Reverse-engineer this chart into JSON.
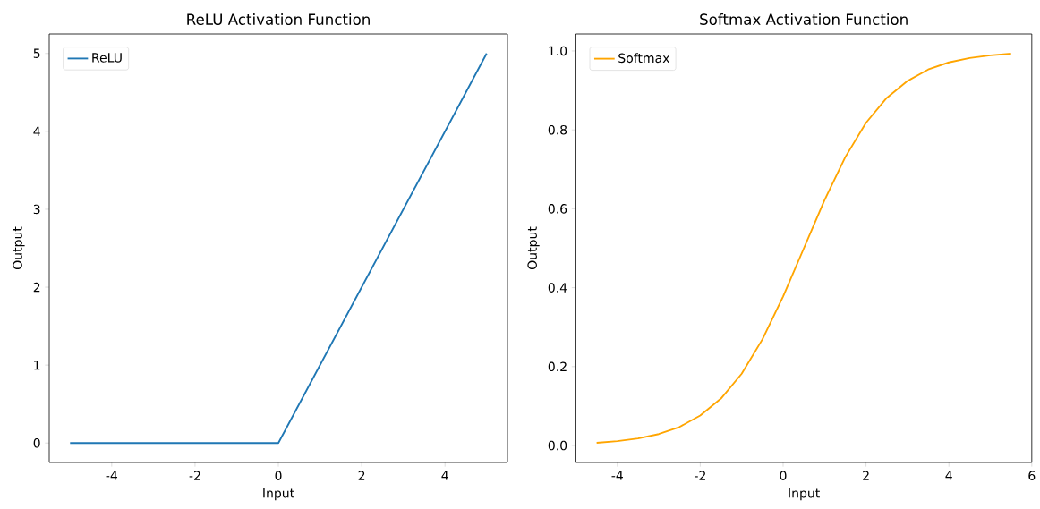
{
  "chart_data": [
    {
      "type": "line",
      "title": "ReLU Activation Function",
      "xlabel": "Input",
      "ylabel": "Output",
      "x": [
        -5,
        0,
        5
      ],
      "series": [
        {
          "name": "ReLU",
          "color": "#1f77b4",
          "values": [
            0,
            0,
            5
          ]
        }
      ],
      "xlim": [
        -5.5,
        5.5
      ],
      "ylim": [
        -0.25,
        5.25
      ],
      "xticks": [
        -4,
        -2,
        0,
        2,
        4
      ],
      "yticks": [
        0,
        1,
        2,
        3,
        4,
        5
      ],
      "legend": "top left",
      "grid": false
    },
    {
      "type": "line",
      "title": "Softmax Activation Function",
      "xlabel": "Input",
      "ylabel": "Output",
      "x": [
        -4.5,
        -4,
        -3.5,
        -3,
        -2.5,
        -2,
        -1.5,
        -1,
        -0.5,
        0,
        0.5,
        1,
        1.5,
        2,
        2.5,
        3,
        3.5,
        4,
        4.5,
        5,
        5.5
      ],
      "series": [
        {
          "name": "Softmax",
          "color": "#ffa500",
          "values": [
            0.007,
            0.011,
            0.018,
            0.029,
            0.047,
            0.076,
            0.119,
            0.182,
            0.269,
            0.378,
            0.5,
            0.622,
            0.731,
            0.818,
            0.881,
            0.924,
            0.953,
            0.971,
            0.982,
            0.989,
            0.993
          ]
        }
      ],
      "xlim": [
        -5,
        6
      ],
      "ylim": [
        -0.043,
        1.043
      ],
      "xticks": [
        -4,
        -2,
        0,
        2,
        4,
        6
      ],
      "yticks": [
        {
          "value": 0,
          "label": "0.0"
        },
        0.2,
        0.4,
        0.6,
        0.8,
        {
          "value": 1,
          "label": "1.0"
        }
      ],
      "legend": "top left",
      "grid": false
    }
  ]
}
